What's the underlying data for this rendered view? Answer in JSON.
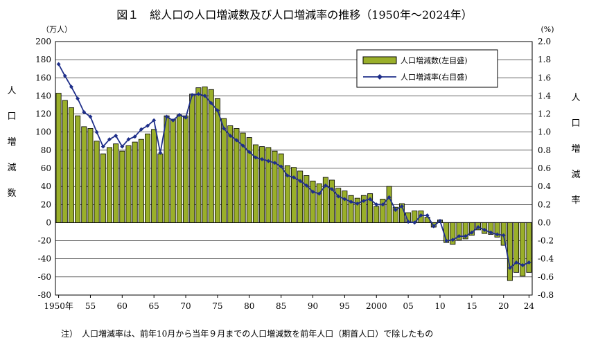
{
  "chart_data": {
    "type": "bar+line",
    "title": "図１　総人口の人口増減数及び人口増減率の推移（1950年～2024年）",
    "left_unit": "（万人）",
    "right_unit": "(%)",
    "left_label": "人口増減数",
    "right_label": "人口増減率",
    "note": "注）　人口増減率は、前年10月から当年９月までの人口増減数を前年人口（期首人口）で除したもの",
    "years": [
      1950,
      1951,
      1952,
      1953,
      1954,
      1955,
      1956,
      1957,
      1958,
      1959,
      1960,
      1961,
      1962,
      1963,
      1964,
      1965,
      1966,
      1967,
      1968,
      1969,
      1970,
      1971,
      1972,
      1973,
      1974,
      1975,
      1976,
      1977,
      1978,
      1979,
      1980,
      1981,
      1982,
      1983,
      1984,
      1985,
      1986,
      1987,
      1988,
      1989,
      1990,
      1991,
      1992,
      1993,
      1994,
      1995,
      1996,
      1997,
      1998,
      1999,
      2000,
      2001,
      2002,
      2003,
      2004,
      2005,
      2006,
      2007,
      2008,
      2009,
      2010,
      2011,
      2012,
      2013,
      2014,
      2015,
      2016,
      2017,
      2018,
      2019,
      2020,
      2021,
      2022,
      2023,
      2024
    ],
    "x_tick_labels": [
      {
        "year": 1950,
        "label": "1950年"
      },
      {
        "year": 1955,
        "label": "55"
      },
      {
        "year": 1960,
        "label": "60"
      },
      {
        "year": 1965,
        "label": "65"
      },
      {
        "year": 1970,
        "label": "70"
      },
      {
        "year": 1975,
        "label": "75"
      },
      {
        "year": 1980,
        "label": "80"
      },
      {
        "year": 1985,
        "label": "85"
      },
      {
        "year": 1990,
        "label": "90"
      },
      {
        "year": 1995,
        "label": "95"
      },
      {
        "year": 2000,
        "label": "2000"
      },
      {
        "year": 2005,
        "label": "05"
      },
      {
        "year": 2010,
        "label": "10"
      },
      {
        "year": 2015,
        "label": "15"
      },
      {
        "year": 2020,
        "label": "20"
      },
      {
        "year": 2024,
        "label": "24"
      }
    ],
    "left_ticks": [
      "200",
      "180",
      "160",
      "140",
      "120",
      "100",
      "80",
      "60",
      "40",
      "20",
      "0",
      "-20",
      "-40",
      "-60",
      "-80"
    ],
    "right_ticks": [
      "2.0",
      "1.8",
      "1.6",
      "1.4",
      "1.2",
      "1.0",
      "0.8",
      "0.6",
      "0.4",
      "0.2",
      "0.0",
      "-0.2",
      "-0.4",
      "-0.6",
      "-0.8"
    ],
    "left_ylim": [
      -80,
      200
    ],
    "right_ylim": [
      -0.8,
      2.0
    ],
    "grid": "horizontal",
    "legend_position": "top-right",
    "series": [
      {
        "name": "人口増減数(左目盛)",
        "type": "bar",
        "axis": "left",
        "color": "#9aaf2a",
        "values": [
          143,
          135,
          127,
          118,
          106,
          104,
          90,
          76,
          83,
          87,
          79,
          85,
          89,
          92,
          98,
          103,
          76,
          118,
          114,
          119,
          118,
          142,
          149,
          150,
          147,
          137,
          115,
          107,
          104,
          99,
          94,
          86,
          84,
          83,
          79,
          76,
          63,
          61,
          57,
          52,
          46,
          43,
          50,
          47,
          38,
          35,
          30,
          27,
          30,
          32,
          18,
          26,
          40,
          17,
          21,
          11,
          13,
          13,
          6,
          -5,
          3,
          -22,
          -24,
          -19,
          -18,
          -14,
          -8,
          -12,
          -13,
          -16,
          -25,
          -64,
          -55,
          -59,
          -55
        ]
      },
      {
        "name": "人口増減率(右目盛)",
        "type": "line",
        "axis": "right",
        "color": "#1f2f8a",
        "values": [
          1.75,
          1.62,
          1.5,
          1.37,
          1.22,
          1.17,
          1.0,
          0.84,
          0.92,
          0.96,
          0.84,
          0.92,
          0.95,
          1.03,
          1.07,
          1.13,
          0.77,
          1.17,
          1.13,
          1.19,
          1.16,
          1.41,
          1.42,
          1.4,
          1.32,
          1.24,
          1.04,
          0.96,
          0.91,
          0.85,
          0.78,
          0.72,
          0.7,
          0.68,
          0.66,
          0.62,
          0.52,
          0.5,
          0.46,
          0.41,
          0.34,
          0.32,
          0.41,
          0.37,
          0.29,
          0.26,
          0.23,
          0.21,
          0.24,
          0.26,
          0.2,
          0.2,
          0.28,
          0.14,
          0.18,
          0.01,
          0.0,
          0.08,
          0.08,
          -0.04,
          0.02,
          -0.2,
          -0.19,
          -0.15,
          -0.15,
          -0.11,
          -0.05,
          -0.08,
          -0.11,
          -0.13,
          -0.14,
          -0.5,
          -0.44,
          -0.47,
          -0.44
        ]
      }
    ]
  },
  "vertical_labels": {
    "left_axis_chars": [
      "人",
      "口",
      "増",
      "減",
      "数"
    ],
    "right_axis_chars": [
      "人",
      "口",
      "増",
      "減",
      "率"
    ]
  }
}
